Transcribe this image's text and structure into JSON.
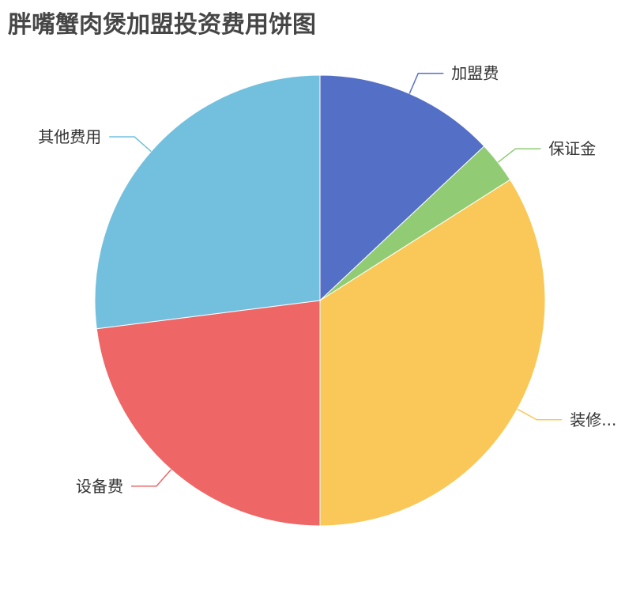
{
  "chart_data": {
    "type": "pie",
    "title": "胖嘴蟹肉煲加盟投资费用饼图",
    "start_angle": "top",
    "direction": "clockwise",
    "slices": [
      {
        "label": "加盟费",
        "value": 13,
        "color": "#5470c6"
      },
      {
        "label": "保证金",
        "value": 3,
        "color": "#91cc75"
      },
      {
        "label": "装修...",
        "value": 34,
        "color": "#fac858"
      },
      {
        "label": "设备费",
        "value": 23,
        "color": "#ee6666"
      },
      {
        "label": "其他费用",
        "value": 27,
        "color": "#73c0de"
      }
    ]
  }
}
